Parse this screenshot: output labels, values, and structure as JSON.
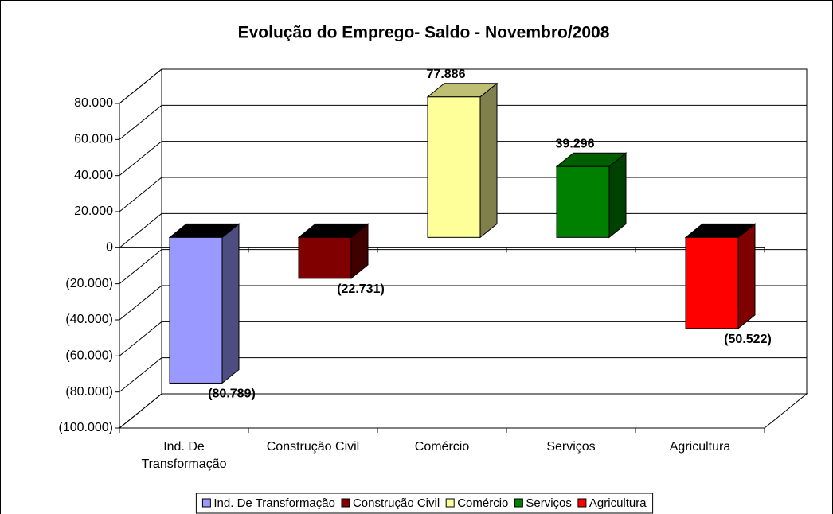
{
  "chart_data": {
    "type": "bar3d",
    "title": "Evolução do Emprego-  Saldo - Novembro/2008",
    "categories": [
      "Ind. De Transformação",
      "Construção Civil",
      "Comércio",
      "Serviços",
      "Agricultura"
    ],
    "values": [
      -80789,
      -22731,
      77886,
      39296,
      -50522
    ],
    "value_labels": [
      "(80.789)",
      "(22.731)",
      "77.886",
      "39.296",
      "(50.522)"
    ],
    "colors": [
      "#9999ff",
      "#800000",
      "#ffff99",
      "#008000",
      "#ff0000"
    ],
    "ylim": [
      -100000,
      80000
    ],
    "yticks": [
      {
        "value": -100000,
        "label": "(100.000)"
      },
      {
        "value": -80000,
        "label": "(80.000)"
      },
      {
        "value": -60000,
        "label": "(60.000)"
      },
      {
        "value": -40000,
        "label": "(40.000)"
      },
      {
        "value": -20000,
        "label": "(20.000)"
      },
      0,
      {
        "value": 20000,
        "label": "20.000"
      },
      {
        "value": 40000,
        "label": "40.000"
      },
      {
        "value": 60000,
        "label": "60.000"
      },
      {
        "value": 80000,
        "label": "80.000"
      }
    ],
    "negative_color": "#ff0000",
    "grid": true,
    "legend": "bottom"
  }
}
